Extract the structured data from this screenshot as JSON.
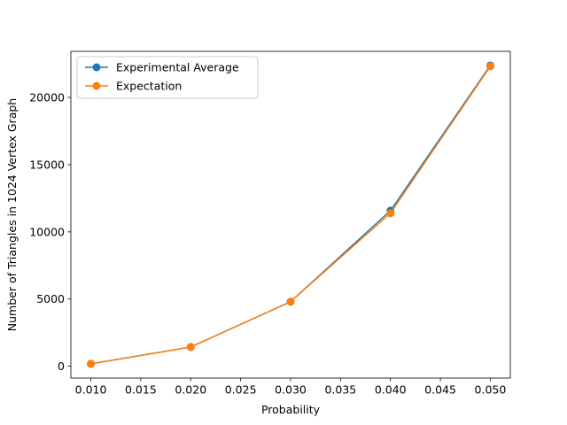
{
  "chart_data": {
    "type": "line",
    "title": "",
    "xlabel": "Probability",
    "ylabel": "Number of Triangles in 1024 Vertex Graph",
    "x": [
      0.01,
      0.02,
      0.03,
      0.04,
      0.05
    ],
    "xlim": [
      0.008,
      0.052
    ],
    "ylim": [
      -880,
      23430
    ],
    "xticks": [
      0.01,
      0.015,
      0.02,
      0.025,
      0.03,
      0.035,
      0.04,
      0.045,
      0.05
    ],
    "xtick_labels": [
      "0.010",
      "0.015",
      "0.020",
      "0.025",
      "0.030",
      "0.035",
      "0.040",
      "0.045",
      "0.050"
    ],
    "yticks": [
      0,
      5000,
      10000,
      15000,
      20000
    ],
    "ytick_labels": [
      "0",
      "5000",
      "10000",
      "15000",
      "20000"
    ],
    "grid": false,
    "legend_position": "top-left",
    "series": [
      {
        "name": "Experimental Average",
        "color": "#1f77b4",
        "marker": "circle",
        "values": [
          180,
          1430,
          4800,
          11580,
          22380
        ]
      },
      {
        "name": "Expectation",
        "color": "#ff7f0e",
        "marker": "circle",
        "values": [
          178,
          1423,
          4803,
          11386,
          22315
        ]
      }
    ]
  }
}
